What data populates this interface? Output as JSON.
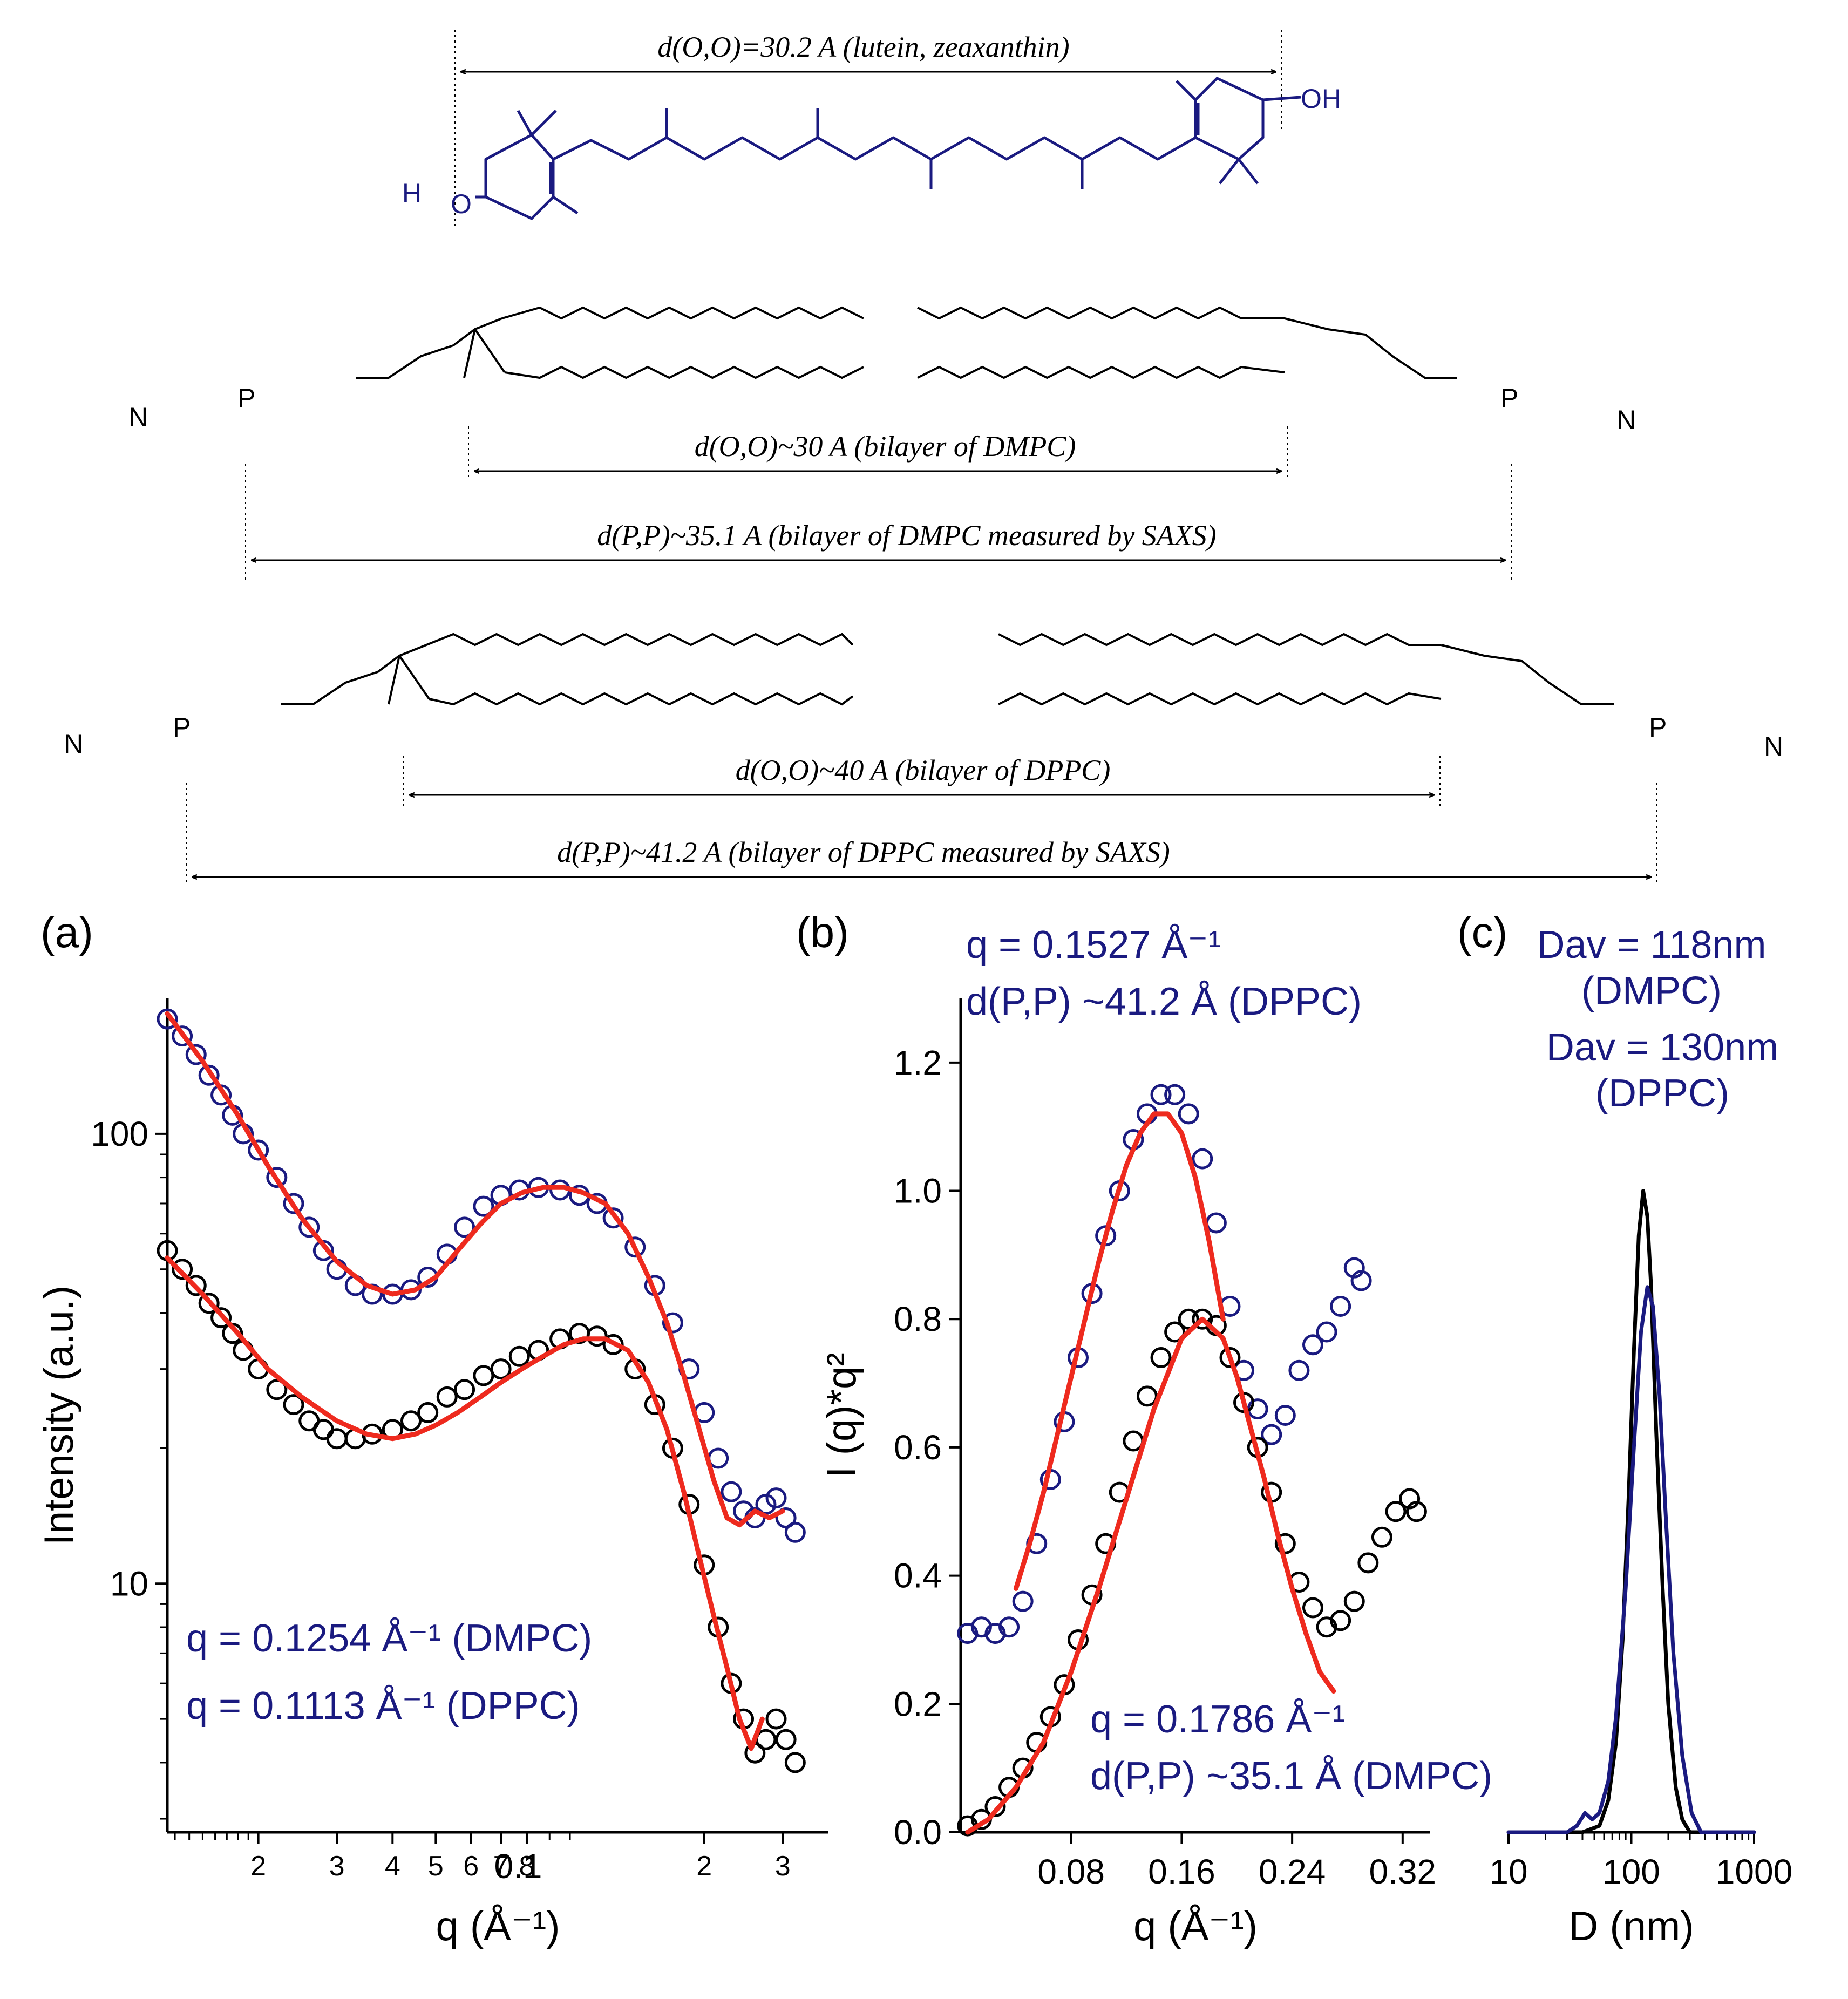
{
  "colors": {
    "molecule_lutein": "#1a1a80",
    "lipid": "#000000",
    "fit": "#ee2a1e",
    "dppc": "#1a1a80",
    "dmpc": "#000000",
    "annotation": "#1a1a80"
  },
  "top_diagram": {
    "lutein_distance": "d(O,O)=30.2 A (lutein, zeaxanthin)",
    "dmpc_oo": "d(O,O)~30 A (bilayer of DMPC)",
    "dmpc_pp": "d(P,P)~35.1  A (bilayer of DMPC measured by SAXS)",
    "dppc_oo": "d(O,O)~40 A (bilayer of DPPC)",
    "dppc_pp": "d(P,P)~41.2  A (bilayer of DPPC measured by SAXS)",
    "atoms": {
      "o": "O",
      "oh": "OH",
      "h": "H",
      "p": "P",
      "n": "N",
      "neg": "-",
      "pos": "+",
      "pos_minus": "+-"
    }
  },
  "panel_a": {
    "label": "(a)",
    "annotation_dmpc": "q = 0.1254 Å⁻¹ (DMPC)",
    "annotation_dppc": "q = 0.1113 Å⁻¹ (DPPC)",
    "decade_label": "0.1"
  },
  "panel_b": {
    "label": "(b)",
    "annotation_dppc_q": "q = 0.1527 Å⁻¹",
    "annotation_dppc_d": "d(P,P) ~41.2 Å (DPPC)",
    "annotation_dmpc_q": "q = 0.1786 Å⁻¹",
    "annotation_dmpc_d": "d(P,P) ~35.1 Å (DMPC)"
  },
  "panel_c": {
    "label": "(c)",
    "dmpc_line1": "Dav = 118nm",
    "dmpc_line2": "(DMPC)",
    "dppc_line1": "Dav = 130nm",
    "dppc_line2": "(DPPC)"
  },
  "chart_data": [
    {
      "id": "a",
      "type": "scatter",
      "title": "(a)",
      "xlabel": "q (Å⁻¹)",
      "ylabel": "Intensity (a.u.)",
      "xscale": "log",
      "yscale": "log",
      "xlim": [
        0.0125,
        0.38
      ],
      "ylim": [
        2.8,
        200
      ],
      "x_ticks": [
        0.02,
        0.03,
        0.04,
        0.05,
        0.06,
        0.07,
        0.08,
        0.2,
        0.3
      ],
      "x_tick_labels": [
        "2",
        "3",
        "4",
        "5",
        "6",
        "7",
        "8",
        "2",
        "3"
      ],
      "y_ticks": [
        10,
        100
      ],
      "y_tick_labels": [
        "10",
        "100"
      ],
      "series": [
        {
          "name": "DPPC",
          "marker": "open-circle",
          "color": "#1a1a80",
          "x": [
            0.0125,
            0.0135,
            0.0145,
            0.0155,
            0.0165,
            0.0175,
            0.0185,
            0.02,
            0.022,
            0.024,
            0.026,
            0.028,
            0.03,
            0.033,
            0.036,
            0.04,
            0.044,
            0.048,
            0.053,
            0.058,
            0.064,
            0.07,
            0.077,
            0.085,
            0.095,
            0.105,
            0.115,
            0.125,
            0.14,
            0.155,
            0.17,
            0.185,
            0.2,
            0.215,
            0.23,
            0.245,
            0.26,
            0.275,
            0.29,
            0.305,
            0.32
          ],
          "y": [
            180,
            165,
            150,
            135,
            122,
            110,
            100,
            92,
            80,
            70,
            62,
            55,
            50,
            46,
            44,
            44,
            45,
            48,
            54,
            62,
            69,
            73,
            75,
            76,
            75,
            73,
            70,
            65,
            56,
            46,
            38,
            30,
            24,
            19,
            16,
            14.5,
            14,
            15,
            15.5,
            14,
            13
          ]
        },
        {
          "name": "DMPC",
          "marker": "open-circle",
          "color": "#000000",
          "x": [
            0.0125,
            0.0135,
            0.0145,
            0.0155,
            0.0165,
            0.0175,
            0.0185,
            0.02,
            0.022,
            0.024,
            0.026,
            0.028,
            0.03,
            0.033,
            0.036,
            0.04,
            0.044,
            0.048,
            0.053,
            0.058,
            0.064,
            0.07,
            0.077,
            0.085,
            0.095,
            0.105,
            0.115,
            0.125,
            0.14,
            0.155,
            0.17,
            0.185,
            0.2,
            0.215,
            0.23,
            0.245,
            0.26,
            0.275,
            0.29,
            0.305,
            0.32
          ],
          "y": [
            55,
            50,
            46,
            42,
            39,
            36,
            33,
            30,
            27,
            25,
            23,
            22,
            21,
            21,
            21.5,
            22,
            23,
            24,
            26,
            27,
            29,
            30,
            32,
            33,
            35,
            36,
            35.5,
            34,
            30,
            25,
            20,
            15,
            11,
            8,
            6,
            5,
            4.2,
            4.5,
            5,
            4.5,
            4
          ]
        },
        {
          "name": "DPPC fit",
          "style": "line",
          "color": "#ee2a1e",
          "x": [
            0.0125,
            0.015,
            0.018,
            0.021,
            0.025,
            0.03,
            0.035,
            0.04,
            0.045,
            0.05,
            0.056,
            0.063,
            0.07,
            0.078,
            0.087,
            0.097,
            0.107,
            0.12,
            0.135,
            0.15,
            0.165,
            0.18,
            0.195,
            0.21,
            0.225,
            0.24,
            0.26,
            0.28,
            0.3
          ],
          "y": [
            185,
            145,
            110,
            85,
            65,
            52,
            46,
            44,
            45,
            48,
            55,
            63,
            70,
            74,
            76,
            76,
            74,
            70,
            60,
            48,
            38,
            29,
            22,
            17,
            14,
            13.5,
            14.5,
            14,
            14.5
          ]
        },
        {
          "name": "DMPC fit",
          "style": "line",
          "color": "#ee2a1e",
          "x": [
            0.0125,
            0.015,
            0.018,
            0.021,
            0.025,
            0.03,
            0.035,
            0.04,
            0.045,
            0.05,
            0.056,
            0.063,
            0.07,
            0.078,
            0.087,
            0.097,
            0.107,
            0.12,
            0.135,
            0.15,
            0.165,
            0.18,
            0.195,
            0.21,
            0.225,
            0.24,
            0.255,
            0.27
          ],
          "y": [
            53,
            44,
            36,
            30,
            26,
            23,
            21.5,
            21,
            21.5,
            22.5,
            24,
            26,
            28,
            30,
            32,
            34,
            35,
            35,
            33,
            28,
            22,
            16,
            11.5,
            8.5,
            6.5,
            5,
            4.3,
            5
          ]
        }
      ]
    },
    {
      "id": "b",
      "type": "scatter",
      "title": "(b)",
      "xlabel": "q (Å⁻¹)",
      "ylabel": "I (q)*q²",
      "xlim": [
        0.0,
        0.34
      ],
      "ylim": [
        0.0,
        1.3
      ],
      "x_ticks": [
        0.08,
        0.16,
        0.24,
        0.32
      ],
      "x_tick_labels": [
        "0.08",
        "0.16",
        "0.24",
        "0.32"
      ],
      "y_ticks": [
        0.0,
        0.2,
        0.4,
        0.6,
        0.8,
        1.0,
        1.2
      ],
      "y_tick_labels": [
        "0.0",
        "0.2",
        "0.4",
        "0.6",
        "0.8",
        "1.0",
        "1.2"
      ],
      "series": [
        {
          "name": "DPPC",
          "marker": "open-circle",
          "color": "#1a1a80",
          "x": [
            0.005,
            0.015,
            0.025,
            0.035,
            0.045,
            0.055,
            0.065,
            0.075,
            0.085,
            0.095,
            0.105,
            0.115,
            0.125,
            0.135,
            0.145,
            0.155,
            0.165,
            0.175,
            0.185,
            0.195,
            0.205,
            0.215,
            0.225,
            0.235,
            0.245,
            0.255,
            0.265,
            0.275,
            0.285,
            0.29
          ],
          "y": [
            0.31,
            0.32,
            0.31,
            0.32,
            0.36,
            0.45,
            0.55,
            0.64,
            0.74,
            0.84,
            0.93,
            1.0,
            1.08,
            1.12,
            1.15,
            1.15,
            1.12,
            1.05,
            0.95,
            0.82,
            0.72,
            0.66,
            0.62,
            0.65,
            0.72,
            0.76,
            0.78,
            0.82,
            0.88,
            0.86
          ]
        },
        {
          "name": "DMPC",
          "marker": "open-circle",
          "color": "#000000",
          "x": [
            0.005,
            0.015,
            0.025,
            0.035,
            0.045,
            0.055,
            0.065,
            0.075,
            0.085,
            0.095,
            0.105,
            0.115,
            0.125,
            0.135,
            0.145,
            0.155,
            0.165,
            0.175,
            0.185,
            0.195,
            0.205,
            0.215,
            0.225,
            0.235,
            0.245,
            0.255,
            0.265,
            0.275,
            0.285,
            0.295,
            0.305,
            0.315,
            0.325,
            0.33
          ],
          "y": [
            0.01,
            0.02,
            0.04,
            0.07,
            0.1,
            0.14,
            0.18,
            0.23,
            0.3,
            0.37,
            0.45,
            0.53,
            0.61,
            0.68,
            0.74,
            0.78,
            0.8,
            0.8,
            0.79,
            0.74,
            0.67,
            0.6,
            0.53,
            0.45,
            0.39,
            0.35,
            0.32,
            0.33,
            0.36,
            0.42,
            0.46,
            0.5,
            0.52,
            0.5
          ]
        },
        {
          "name": "DPPC fit",
          "style": "line",
          "color": "#ee2a1e",
          "x": [
            0.04,
            0.05,
            0.06,
            0.07,
            0.08,
            0.09,
            0.1,
            0.11,
            0.12,
            0.13,
            0.14,
            0.15,
            0.16,
            0.17,
            0.18,
            0.19
          ],
          "y": [
            0.38,
            0.45,
            0.53,
            0.62,
            0.71,
            0.8,
            0.89,
            0.97,
            1.04,
            1.09,
            1.12,
            1.12,
            1.09,
            1.02,
            0.92,
            0.8
          ]
        },
        {
          "name": "DMPC fit",
          "style": "line",
          "color": "#ee2a1e",
          "x": [
            0.005,
            0.02,
            0.04,
            0.06,
            0.08,
            0.1,
            0.12,
            0.14,
            0.16,
            0.175,
            0.19,
            0.2,
            0.21,
            0.22,
            0.23,
            0.24,
            0.25,
            0.26,
            0.27
          ],
          "y": [
            0.0,
            0.02,
            0.07,
            0.14,
            0.25,
            0.38,
            0.52,
            0.66,
            0.77,
            0.8,
            0.77,
            0.71,
            0.63,
            0.55,
            0.46,
            0.38,
            0.31,
            0.25,
            0.22
          ]
        }
      ]
    },
    {
      "id": "c",
      "type": "line",
      "title": "(c)",
      "xlabel": "D (nm)",
      "ylabel": "",
      "xscale": "log",
      "xlim": [
        10,
        1000
      ],
      "ylim": [
        0,
        1.3
      ],
      "x_ticks": [
        10,
        100,
        1000
      ],
      "x_tick_labels": [
        "10",
        "100",
        "1000"
      ],
      "series": [
        {
          "name": "DMPC",
          "color": "#000000",
          "x": [
            10,
            40,
            55,
            65,
            75,
            85,
            95,
            105,
            115,
            125,
            135,
            145,
            160,
            180,
            200,
            230,
            260,
            300,
            1000
          ],
          "y": [
            0,
            0,
            0.01,
            0.05,
            0.14,
            0.3,
            0.52,
            0.75,
            0.93,
            1.0,
            0.96,
            0.85,
            0.62,
            0.38,
            0.2,
            0.07,
            0.02,
            0,
            0
          ]
        },
        {
          "name": "DPPC",
          "color": "#1a1a80",
          "x": [
            10,
            30,
            36,
            42,
            48,
            55,
            65,
            75,
            90,
            105,
            120,
            135,
            150,
            170,
            190,
            220,
            260,
            310,
            370,
            1000
          ],
          "y": [
            0,
            0,
            0.01,
            0.03,
            0.02,
            0.03,
            0.08,
            0.18,
            0.38,
            0.6,
            0.78,
            0.85,
            0.82,
            0.68,
            0.5,
            0.28,
            0.12,
            0.03,
            0,
            0
          ]
        }
      ]
    }
  ]
}
